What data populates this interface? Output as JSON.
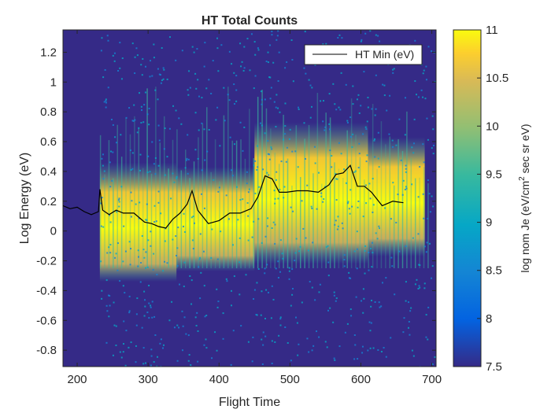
{
  "chart_data": {
    "type": "heatmap",
    "title": "HT Total Counts",
    "xlabel": "Flight Time",
    "ylabel": "Log Energy (eV)",
    "xlim": [
      180,
      706
    ],
    "ylim": [
      -0.91,
      1.35
    ],
    "x_ticks": [
      200,
      300,
      400,
      500,
      600,
      700
    ],
    "y_ticks": [
      -0.8,
      -0.6,
      -0.4,
      -0.2,
      0,
      0.2,
      0.4,
      0.6,
      0.8,
      1,
      1.2
    ],
    "colorbar": {
      "label_parts": [
        "log nom Je (eV/cm",
        "2",
        " sec sr eV)"
      ],
      "range": [
        7.5,
        11
      ],
      "ticks": [
        7.5,
        8,
        8.5,
        9,
        9.5,
        10,
        10.5,
        11
      ],
      "colormap": "parula",
      "background_color": "#352a87"
    },
    "data_start_time": 232,
    "series": [
      {
        "name": "HT Min (eV)",
        "type": "line",
        "color": "#000000",
        "points": [
          [
            180,
            0.17
          ],
          [
            190,
            0.15
          ],
          [
            200,
            0.16
          ],
          [
            210,
            0.13
          ],
          [
            220,
            0.11
          ],
          [
            230,
            0.13
          ],
          [
            232,
            0.28
          ],
          [
            236,
            0.14
          ],
          [
            245,
            0.11
          ],
          [
            255,
            0.14
          ],
          [
            265,
            0.12
          ],
          [
            280,
            0.12
          ],
          [
            295,
            0.06
          ],
          [
            305,
            0.05
          ],
          [
            315,
            0.03
          ],
          [
            325,
            0.02
          ],
          [
            335,
            0.08
          ],
          [
            345,
            0.12
          ],
          [
            355,
            0.18
          ],
          [
            362,
            0.27
          ],
          [
            370,
            0.14
          ],
          [
            385,
            0.05
          ],
          [
            400,
            0.07
          ],
          [
            415,
            0.12
          ],
          [
            430,
            0.12
          ],
          [
            445,
            0.15
          ],
          [
            455,
            0.23
          ],
          [
            465,
            0.37
          ],
          [
            475,
            0.35
          ],
          [
            485,
            0.26
          ],
          [
            495,
            0.26
          ],
          [
            510,
            0.27
          ],
          [
            525,
            0.27
          ],
          [
            540,
            0.26
          ],
          [
            555,
            0.31
          ],
          [
            565,
            0.38
          ],
          [
            575,
            0.39
          ],
          [
            585,
            0.44
          ],
          [
            595,
            0.3
          ],
          [
            605,
            0.3
          ],
          [
            615,
            0.26
          ],
          [
            630,
            0.17
          ],
          [
            645,
            0.2
          ],
          [
            660,
            0.19
          ]
        ]
      }
    ],
    "legend": {
      "position": "top-right",
      "entries": [
        "HT Min (eV)"
      ]
    },
    "band": {
      "segments": [
        {
          "x": [
            232,
            340
          ],
          "bottom": -0.22,
          "top": 0.28
        },
        {
          "x": [
            340,
            450
          ],
          "bottom": -0.15,
          "top": 0.25
        },
        {
          "x": [
            450,
            610
          ],
          "bottom": -0.1,
          "top": 0.55
        },
        {
          "x": [
            610,
            690
          ],
          "bottom": -0.05,
          "top": 0.45
        }
      ]
    },
    "grid": false
  }
}
